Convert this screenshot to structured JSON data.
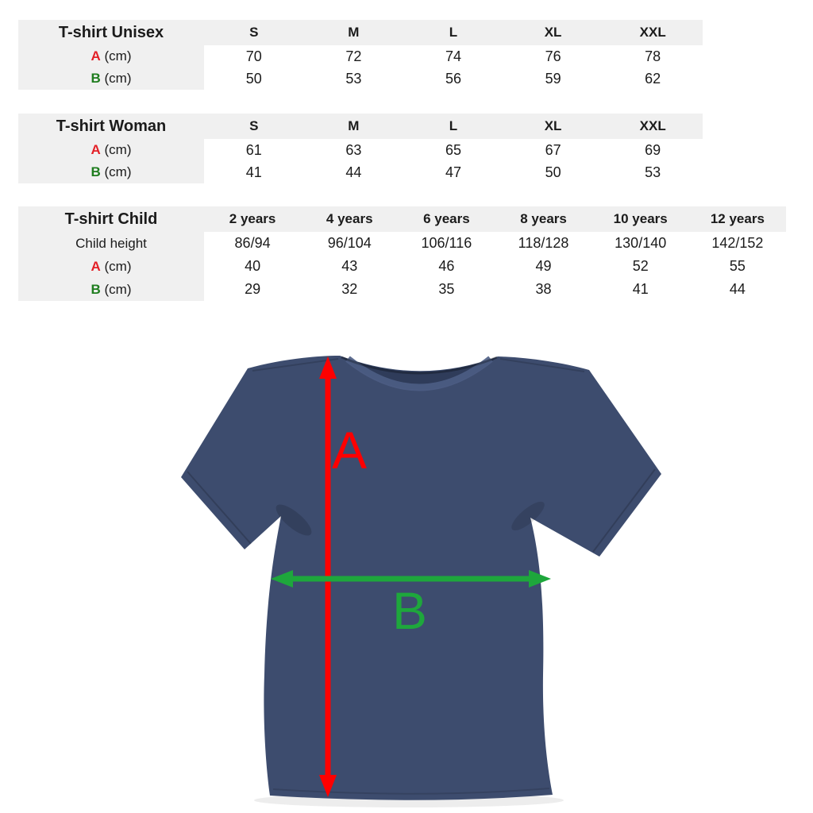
{
  "colors": {
    "table_letter_red": "#e32027",
    "table_letter_green": "#1e7d1e",
    "arrow_red": "#ff0000",
    "arrow_green": "#1ea73c",
    "shirt_navy": "#3d4c6e",
    "shirt_collar_dark": "#2f3c5a",
    "shirt_collar_band": "#4d5d84",
    "cell_gray": "#f0f0f0"
  },
  "tables": [
    {
      "title": "T-shirt Unisex",
      "columns": [
        "S",
        "M",
        "L",
        "XL",
        "XXL"
      ],
      "rows": [
        {
          "letter": "A",
          "letter_color": "red",
          "suffix": "(cm)",
          "values": [
            "70",
            "72",
            "74",
            "76",
            "78"
          ]
        },
        {
          "letter": "B",
          "letter_color": "green",
          "suffix": "(cm)",
          "values": [
            "50",
            "53",
            "56",
            "59",
            "62"
          ]
        }
      ]
    },
    {
      "title": "T-shirt Woman",
      "columns": [
        "S",
        "M",
        "L",
        "XL",
        "XXL"
      ],
      "rows": [
        {
          "letter": "A",
          "letter_color": "red",
          "suffix": "(cm)",
          "values": [
            "61",
            "63",
            "65",
            "67",
            "69"
          ]
        },
        {
          "letter": "B",
          "letter_color": "green",
          "suffix": "(cm)",
          "values": [
            "41",
            "44",
            "47",
            "50",
            "53"
          ]
        }
      ]
    },
    {
      "title": "T-shirt Child",
      "columns": [
        "2 years",
        "4 years",
        "6 years",
        "8 years",
        "10 years",
        "12 years"
      ],
      "rows": [
        {
          "label": "Child height",
          "values": [
            "86/94",
            "96/104",
            "106/116",
            "118/128",
            "130/140",
            "142/152"
          ]
        },
        {
          "letter": "A",
          "letter_color": "red",
          "suffix": "(cm)",
          "values": [
            "40",
            "43",
            "46",
            "49",
            "52",
            "55"
          ]
        },
        {
          "letter": "B",
          "letter_color": "green",
          "suffix": "(cm)",
          "values": [
            "29",
            "32",
            "35",
            "38",
            "41",
            "44"
          ]
        }
      ]
    }
  ],
  "diagram": {
    "height_label": "A",
    "width_label": "B"
  }
}
